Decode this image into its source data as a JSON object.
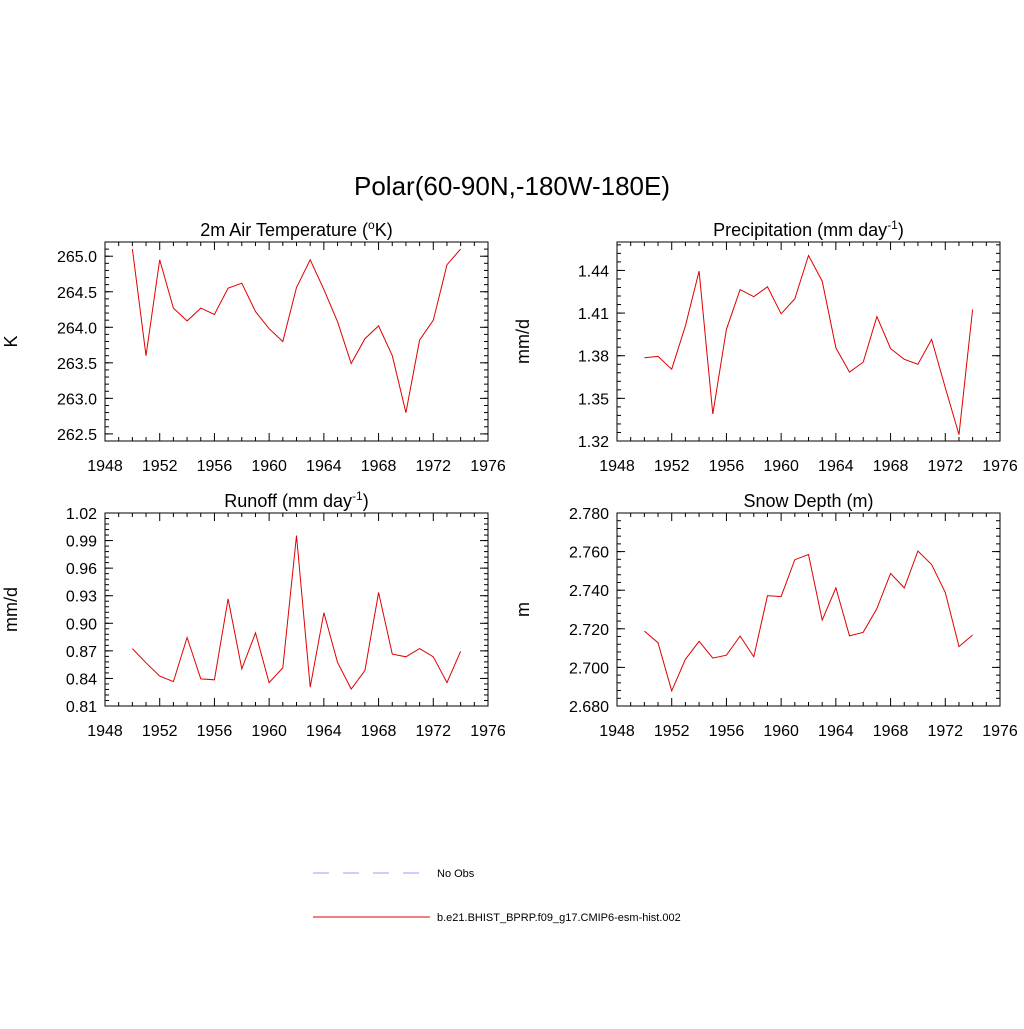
{
  "figure": {
    "title": "Polar(60-90N,-180W-180E)"
  },
  "colors": {
    "model_line": "#e00000",
    "obs_line": "#9a9aff",
    "axes": "#000000"
  },
  "legend": {
    "entries": [
      {
        "label": "No Obs",
        "style": "dashed",
        "color": "#9a9aff"
      },
      {
        "label": "b.e21.BHIST_BPRP.f09_g17.CMIP6-esm-hist.002",
        "style": "solid",
        "color": "#e00000"
      }
    ]
  },
  "chart_data": [
    {
      "type": "line",
      "title_main": "2m Air Temperature (",
      "title_sup": "o",
      "title_tail": "K)",
      "ylabel": "K",
      "xlim": [
        1948,
        1976
      ],
      "xticks": [
        1948,
        1952,
        1956,
        1960,
        1964,
        1968,
        1972,
        1976
      ],
      "ylim": [
        262.4,
        265.2
      ],
      "yticks": [
        "262.5",
        "263.0",
        "263.5",
        "264.0",
        "264.5",
        "265.0"
      ],
      "x": [
        1950,
        1951,
        1952,
        1953,
        1954,
        1955,
        1956,
        1957,
        1958,
        1959,
        1960,
        1961,
        1962,
        1963,
        1964,
        1965,
        1966,
        1967,
        1968,
        1969,
        1970,
        1971,
        1972,
        1973,
        1974
      ],
      "series": [
        {
          "name": "b.e21.BHIST_BPRP.f09_g17.CMIP6-esm-hist.002",
          "values": [
            265.1,
            263.6,
            264.95,
            264.27,
            264.09,
            264.27,
            264.18,
            264.55,
            264.62,
            264.22,
            263.98,
            263.8,
            264.56,
            264.95,
            264.53,
            264.08,
            263.49,
            263.84,
            264.02,
            263.6,
            262.8,
            263.82,
            264.1,
            264.88,
            265.1
          ]
        }
      ]
    },
    {
      "type": "line",
      "title_main": "Precipitation (mm day",
      "title_sup": "-1",
      "title_tail": ")",
      "ylabel": "mm/d",
      "xlim": [
        1948,
        1976
      ],
      "xticks": [
        1948,
        1952,
        1956,
        1960,
        1964,
        1968,
        1972,
        1976
      ],
      "ylim": [
        1.32,
        1.46
      ],
      "yticks": [
        "1.32",
        "1.35",
        "1.38",
        "1.41",
        "1.44"
      ],
      "x": [
        1950,
        1951,
        1952,
        1953,
        1954,
        1955,
        1956,
        1957,
        1958,
        1959,
        1960,
        1961,
        1962,
        1963,
        1964,
        1965,
        1966,
        1967,
        1968,
        1969,
        1970,
        1971,
        1972,
        1973,
        1974
      ],
      "series": [
        {
          "name": "b.e21.BHIST_BPRP.f09_g17.CMIP6-esm-hist.002",
          "values": [
            1.3785,
            1.3795,
            1.3705,
            1.401,
            1.4395,
            1.339,
            1.3985,
            1.4265,
            1.4215,
            1.4285,
            1.4095,
            1.42,
            1.4505,
            1.4325,
            1.3855,
            1.3685,
            1.3755,
            1.4075,
            1.385,
            1.3775,
            1.374,
            1.3915,
            1.3575,
            1.3245,
            1.4125
          ]
        }
      ]
    },
    {
      "type": "line",
      "title_main": "Runoff (mm day",
      "title_sup": "-1",
      "title_tail": ")",
      "ylabel": "mm/d",
      "xlim": [
        1948,
        1976
      ],
      "xticks": [
        1948,
        1952,
        1956,
        1960,
        1964,
        1968,
        1972,
        1976
      ],
      "ylim": [
        0.81,
        1.02
      ],
      "yticks": [
        "0.81",
        "0.84",
        "0.87",
        "0.90",
        "0.93",
        "0.96",
        "0.99",
        "1.02"
      ],
      "x": [
        1950,
        1951,
        1952,
        1953,
        1954,
        1955,
        1956,
        1957,
        1958,
        1959,
        1960,
        1961,
        1962,
        1963,
        1964,
        1965,
        1966,
        1967,
        1968,
        1969,
        1970,
        1971,
        1972,
        1973,
        1974
      ],
      "series": [
        {
          "name": "b.e21.BHIST_BPRP.f09_g17.CMIP6-esm-hist.002",
          "values": [
            0.8725,
            0.857,
            0.8425,
            0.8365,
            0.8845,
            0.8395,
            0.8385,
            0.9265,
            0.8505,
            0.8895,
            0.8355,
            0.8515,
            0.9955,
            0.8305,
            0.9115,
            0.8575,
            0.8285,
            0.8485,
            0.9335,
            0.8665,
            0.8635,
            0.8725,
            0.8635,
            0.8355,
            0.8695
          ]
        }
      ]
    },
    {
      "type": "line",
      "title_main": "Snow Depth (m)",
      "title_sup": "",
      "title_tail": "",
      "ylabel": "m",
      "xlim": [
        1948,
        1976
      ],
      "xticks": [
        1948,
        1952,
        1956,
        1960,
        1964,
        1968,
        1972,
        1976
      ],
      "ylim": [
        2.68,
        2.78
      ],
      "yticks": [
        "2.680",
        "2.700",
        "2.720",
        "2.740",
        "2.760",
        "2.780"
      ],
      "x": [
        1950,
        1951,
        1952,
        1953,
        1954,
        1955,
        1956,
        1957,
        1958,
        1959,
        1960,
        1961,
        1962,
        1963,
        1964,
        1965,
        1966,
        1967,
        1968,
        1969,
        1970,
        1971,
        1972,
        1973,
        1974
      ],
      "series": [
        {
          "name": "b.e21.BHIST_BPRP.f09_g17.CMIP6-esm-hist.002",
          "values": [
            2.7188,
            2.7128,
            2.6878,
            2.7042,
            2.7135,
            2.7048,
            2.7063,
            2.7162,
            2.7055,
            2.7372,
            2.7367,
            2.7558,
            2.7585,
            2.7245,
            2.7412,
            2.7163,
            2.7182,
            2.7305,
            2.7487,
            2.7412,
            2.7603,
            2.7533,
            2.7388,
            2.7108,
            2.7168
          ]
        }
      ]
    }
  ]
}
